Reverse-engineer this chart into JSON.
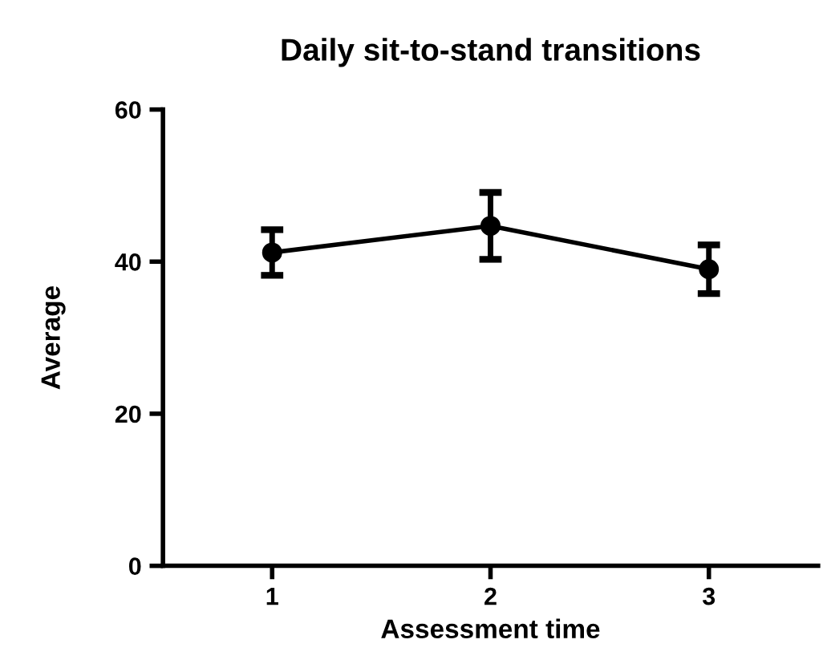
{
  "chart_data": {
    "type": "line",
    "title": "Daily sit-to-stand transitions",
    "xlabel": "Assessment time",
    "ylabel": "Average",
    "x": [
      1,
      2,
      3
    ],
    "series": [
      {
        "color": "#000000",
        "values": [
          41.2,
          44.7,
          39.0
        ],
        "errors": [
          3.0,
          4.4,
          3.2
        ]
      }
    ],
    "xlim": [
      0.5,
      3.5
    ],
    "xticks": [
      1,
      2,
      3
    ],
    "ylim": [
      0,
      60
    ],
    "yticks": [
      0,
      20,
      40,
      60
    ],
    "marker": "circle",
    "line_style": "solid",
    "grid": false,
    "legend": false
  }
}
